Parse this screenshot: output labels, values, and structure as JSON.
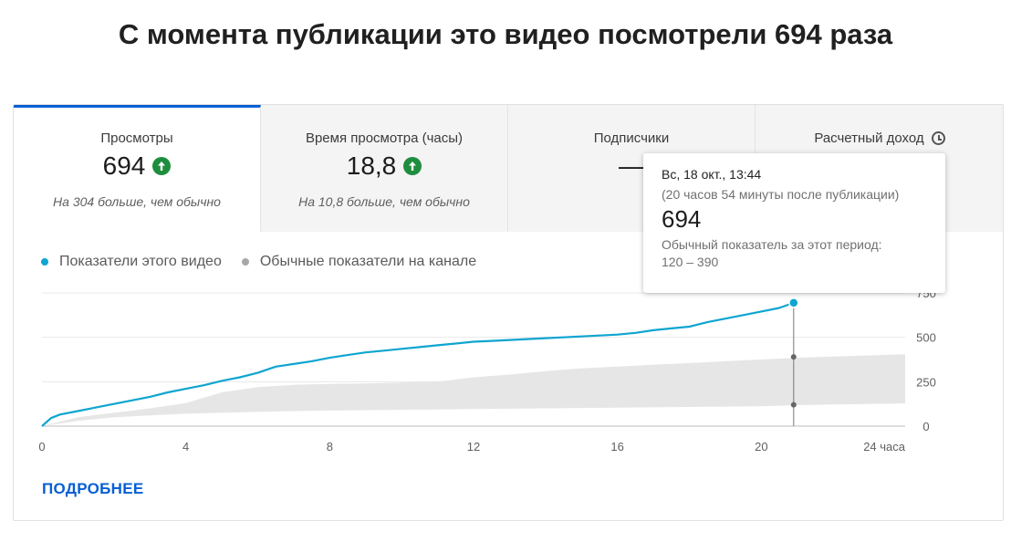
{
  "title": "С момента публикации это видео посмотрели 694 раза",
  "tabs": [
    {
      "label": "Просмотры",
      "value": "694",
      "trend": "up",
      "sub": "На 304 больше, чем обычно"
    },
    {
      "label": "Время просмотра (часы)",
      "value": "18,8",
      "trend": "up",
      "sub": "На 10,8 больше, чем обычно"
    },
    {
      "label": "Подписчики",
      "value": "—"
    },
    {
      "label": "Расчетный доход",
      "icon": "clock-icon"
    }
  ],
  "legend": {
    "this_video": "Показатели этого видео",
    "typical": "Обычные показатели на канале"
  },
  "tooltip": {
    "date": "Вс, 18 окт., 13:44",
    "after": "(20 часов 54 минуты после публикации)",
    "value": "694",
    "typical_label": "Обычный показатель за этот период:",
    "typical_range": "120 – 390"
  },
  "more_link": "ПОДРОБНЕЕ",
  "colors": {
    "accent": "#065fd4",
    "series": "#0ea5d0",
    "band": "#e6e6e6",
    "up": "#1e8e3e"
  },
  "chart_data": {
    "type": "line",
    "x_unit_label": "24 часа",
    "x_ticks": [
      0,
      4,
      8,
      12,
      16,
      20
    ],
    "y_ticks": [
      0,
      250,
      500,
      750
    ],
    "xlim": [
      0,
      24
    ],
    "ylim": [
      0,
      750
    ],
    "series": [
      {
        "name": "Показатели этого видео",
        "x": [
          0,
          0.25,
          0.5,
          1,
          1.5,
          2,
          2.5,
          3,
          3.5,
          4,
          4.5,
          5,
          5.5,
          6,
          6.5,
          7,
          7.5,
          8,
          8.5,
          9,
          9.5,
          10,
          10.5,
          11,
          11.5,
          12,
          12.5,
          13,
          13.5,
          14,
          14.5,
          15,
          15.5,
          16,
          16.5,
          17,
          17.5,
          18,
          18.5,
          19,
          19.5,
          20,
          20.5,
          20.9
        ],
        "y": [
          0,
          45,
          65,
          85,
          105,
          125,
          145,
          165,
          190,
          210,
          230,
          255,
          275,
          300,
          335,
          350,
          365,
          385,
          400,
          415,
          425,
          435,
          445,
          455,
          465,
          475,
          480,
          485,
          490,
          495,
          500,
          505,
          510,
          515,
          525,
          540,
          550,
          560,
          585,
          605,
          625,
          645,
          665,
          694
        ]
      }
    ],
    "typical_band": {
      "name": "Обычные показатели на канале",
      "x": [
        0,
        1,
        2,
        3,
        4,
        5,
        6,
        7,
        8,
        9,
        10,
        11,
        12,
        13,
        14,
        15,
        16,
        17,
        18,
        19,
        20,
        21,
        22,
        23,
        24
      ],
      "low": [
        0,
        30,
        50,
        60,
        70,
        75,
        80,
        85,
        88,
        90,
        92,
        94,
        96,
        98,
        100,
        102,
        104,
        106,
        108,
        110,
        112,
        118,
        122,
        125,
        128
      ],
      "high": [
        0,
        50,
        75,
        100,
        130,
        190,
        220,
        232,
        238,
        240,
        245,
        250,
        275,
        290,
        310,
        325,
        335,
        345,
        355,
        365,
        375,
        385,
        392,
        398,
        405
      ]
    },
    "marker": {
      "x": 20.9,
      "y": 694,
      "typical_low": 120,
      "typical_high": 390
    }
  }
}
